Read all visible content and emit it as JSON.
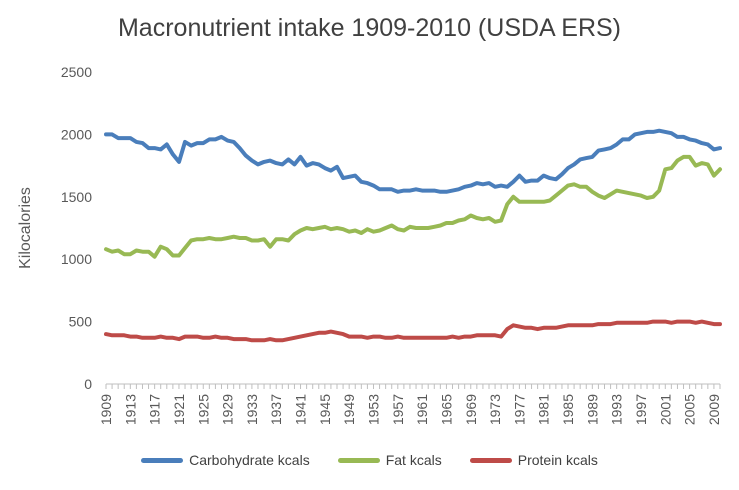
{
  "chart_data": {
    "type": "line",
    "title": "Macronutrient intake 1909-2010 (USDA ERS)",
    "xlabel": "",
    "ylabel": "Kilocalories",
    "ylim": [
      0,
      2500
    ],
    "yticks": [
      0,
      500,
      1000,
      1500,
      2000,
      2500
    ],
    "x": [
      1909,
      1910,
      1911,
      1912,
      1913,
      1914,
      1915,
      1916,
      1917,
      1918,
      1919,
      1920,
      1921,
      1922,
      1923,
      1924,
      1925,
      1926,
      1927,
      1928,
      1929,
      1930,
      1931,
      1932,
      1933,
      1934,
      1935,
      1936,
      1937,
      1938,
      1939,
      1940,
      1941,
      1942,
      1943,
      1944,
      1945,
      1946,
      1947,
      1948,
      1949,
      1950,
      1951,
      1952,
      1953,
      1954,
      1955,
      1956,
      1957,
      1958,
      1959,
      1960,
      1961,
      1962,
      1963,
      1964,
      1965,
      1966,
      1967,
      1968,
      1969,
      1970,
      1971,
      1972,
      1973,
      1974,
      1975,
      1976,
      1977,
      1978,
      1979,
      1980,
      1981,
      1982,
      1983,
      1984,
      1985,
      1986,
      1987,
      1988,
      1989,
      1990,
      1991,
      1992,
      1993,
      1994,
      1995,
      1996,
      1997,
      1998,
      1999,
      2000,
      2001,
      2002,
      2003,
      2004,
      2005,
      2006,
      2007,
      2008,
      2009,
      2010
    ],
    "xtick_labels": [
      "1909",
      "1913",
      "1917",
      "1921",
      "1925",
      "1929",
      "1933",
      "1937",
      "1941",
      "1945",
      "1949",
      "1953",
      "1957",
      "1961",
      "1965",
      "1969",
      "1973",
      "1977",
      "1981",
      "1985",
      "1989",
      "1993",
      "1997",
      "2001",
      "2005",
      "2009"
    ],
    "grid": false,
    "legend_position": "bottom",
    "series": [
      {
        "name": "Carbohydrate kcals",
        "color": "#4a7ebb",
        "values": [
          2000,
          2000,
          1970,
          1970,
          1970,
          1940,
          1930,
          1890,
          1890,
          1880,
          1920,
          1840,
          1780,
          1940,
          1910,
          1930,
          1930,
          1960,
          1960,
          1980,
          1950,
          1940,
          1890,
          1830,
          1790,
          1760,
          1780,
          1790,
          1770,
          1760,
          1800,
          1760,
          1820,
          1750,
          1770,
          1760,
          1730,
          1710,
          1740,
          1650,
          1660,
          1670,
          1620,
          1610,
          1590,
          1560,
          1560,
          1560,
          1540,
          1550,
          1550,
          1560,
          1550,
          1550,
          1550,
          1540,
          1540,
          1550,
          1560,
          1580,
          1590,
          1610,
          1600,
          1610,
          1580,
          1590,
          1580,
          1620,
          1670,
          1620,
          1630,
          1630,
          1670,
          1650,
          1640,
          1680,
          1730,
          1760,
          1800,
          1810,
          1820,
          1870,
          1880,
          1890,
          1920,
          1960,
          1960,
          2000,
          2010,
          2020,
          2020,
          2030,
          2020,
          2010,
          1980,
          1980,
          1960,
          1950,
          1930,
          1920,
          1880,
          1890
        ]
      },
      {
        "name": "Fat kcals",
        "color": "#98b954",
        "values": [
          1080,
          1060,
          1070,
          1040,
          1040,
          1070,
          1060,
          1060,
          1020,
          1100,
          1080,
          1030,
          1030,
          1090,
          1150,
          1160,
          1160,
          1170,
          1160,
          1160,
          1170,
          1180,
          1170,
          1170,
          1150,
          1150,
          1160,
          1100,
          1160,
          1160,
          1150,
          1200,
          1230,
          1250,
          1240,
          1250,
          1260,
          1240,
          1250,
          1240,
          1220,
          1230,
          1210,
          1240,
          1220,
          1230,
          1250,
          1270,
          1240,
          1230,
          1260,
          1250,
          1250,
          1250,
          1260,
          1270,
          1290,
          1290,
          1310,
          1320,
          1350,
          1330,
          1320,
          1330,
          1300,
          1310,
          1440,
          1500,
          1460,
          1460,
          1460,
          1460,
          1460,
          1470,
          1510,
          1550,
          1590,
          1600,
          1580,
          1580,
          1540,
          1510,
          1490,
          1520,
          1550,
          1540,
          1530,
          1520,
          1510,
          1490,
          1500,
          1550,
          1720,
          1730,
          1790,
          1820,
          1820,
          1750,
          1770,
          1760,
          1670,
          1720
        ]
      },
      {
        "name": "Protein kcals",
        "color": "#be4b48",
        "values": [
          400,
          390,
          390,
          390,
          380,
          380,
          370,
          370,
          370,
          380,
          370,
          370,
          360,
          380,
          380,
          380,
          370,
          370,
          380,
          370,
          370,
          360,
          360,
          360,
          350,
          350,
          350,
          360,
          350,
          350,
          360,
          370,
          380,
          390,
          400,
          410,
          410,
          420,
          410,
          400,
          380,
          380,
          380,
          370,
          380,
          380,
          370,
          370,
          380,
          370,
          370,
          370,
          370,
          370,
          370,
          370,
          370,
          380,
          370,
          380,
          380,
          390,
          390,
          390,
          390,
          380,
          440,
          470,
          460,
          450,
          450,
          440,
          450,
          450,
          450,
          460,
          470,
          470,
          470,
          470,
          470,
          480,
          480,
          480,
          490,
          490,
          490,
          490,
          490,
          490,
          500,
          500,
          500,
          490,
          500,
          500,
          500,
          490,
          500,
          490,
          480,
          480
        ]
      }
    ]
  }
}
